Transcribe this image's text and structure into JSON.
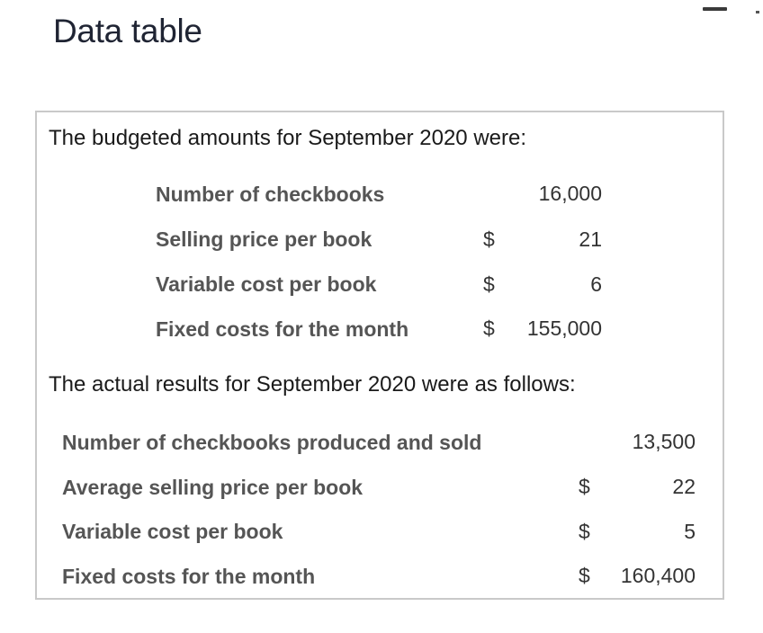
{
  "header": {
    "title": "Data table"
  },
  "budget": {
    "intro": "The budgeted amounts for September 2020 were:",
    "rows": [
      {
        "label": "Number of checkbooks",
        "dollar": "",
        "value": "16,000"
      },
      {
        "label": "Selling price per book",
        "dollar": "$",
        "value": "21"
      },
      {
        "label": "Variable cost per book",
        "dollar": "$",
        "value": "6"
      },
      {
        "label": "Fixed costs for the month",
        "dollar": "$",
        "value": "155,000"
      }
    ]
  },
  "actual": {
    "intro": "The actual results for September 2020 were as follows:",
    "rows": [
      {
        "label": "Number of checkbooks produced and sold",
        "dollar": "",
        "value": "13,500"
      },
      {
        "label": "Average selling price per book",
        "dollar": "$",
        "value": "22"
      },
      {
        "label": "Variable cost per book",
        "dollar": "$",
        "value": "5"
      },
      {
        "label": "Fixed costs for the month",
        "dollar": "$",
        "value": "160,400"
      }
    ]
  }
}
